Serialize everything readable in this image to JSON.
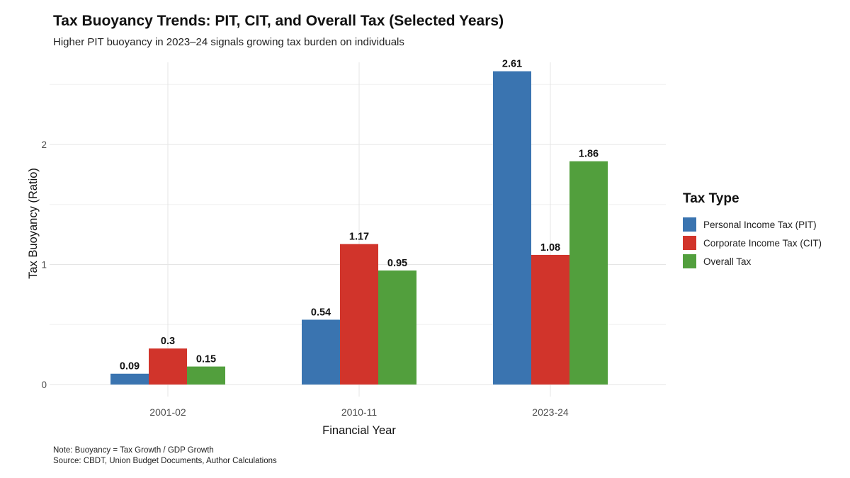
{
  "chart_data": {
    "type": "bar",
    "title": "Tax Buoyancy Trends: PIT, CIT, and Overall Tax (Selected Years)",
    "subtitle": "Higher PIT buoyancy in 2023–24 signals growing tax burden on individuals",
    "xlabel": "Financial Year",
    "ylabel": "Tax Buoyancy (Ratio)",
    "categories": [
      "2001-02",
      "2010-11",
      "2023-24"
    ],
    "series": [
      {
        "name": "Personal Income Tax (PIT)",
        "color": "#3a74b0",
        "values": [
          0.09,
          0.54,
          2.61
        ],
        "labels": [
          "0.09",
          "0.54",
          "2.61"
        ]
      },
      {
        "name": "Corporate Income Tax (CIT)",
        "color": "#d1342b",
        "values": [
          0.3,
          1.17,
          1.08
        ],
        "labels": [
          "0.3",
          "1.17",
          "1.08"
        ]
      },
      {
        "name": "Overall Tax",
        "color": "#529f3d",
        "values": [
          0.15,
          0.95,
          1.86
        ],
        "labels": [
          "0.15",
          "0.95",
          "1.86"
        ]
      }
    ],
    "ylim": [
      0,
      2.61
    ],
    "yticks": [
      0,
      1,
      2
    ],
    "ytick_labels": [
      "0",
      "1",
      "2"
    ],
    "grid": true,
    "legend": {
      "title": "Tax Type",
      "placement": "right"
    },
    "notes": [
      "Note: Buoyancy = Tax Growth / GDP Growth",
      "Source: CBDT, Union Budget Documents, Author Calculations"
    ]
  }
}
